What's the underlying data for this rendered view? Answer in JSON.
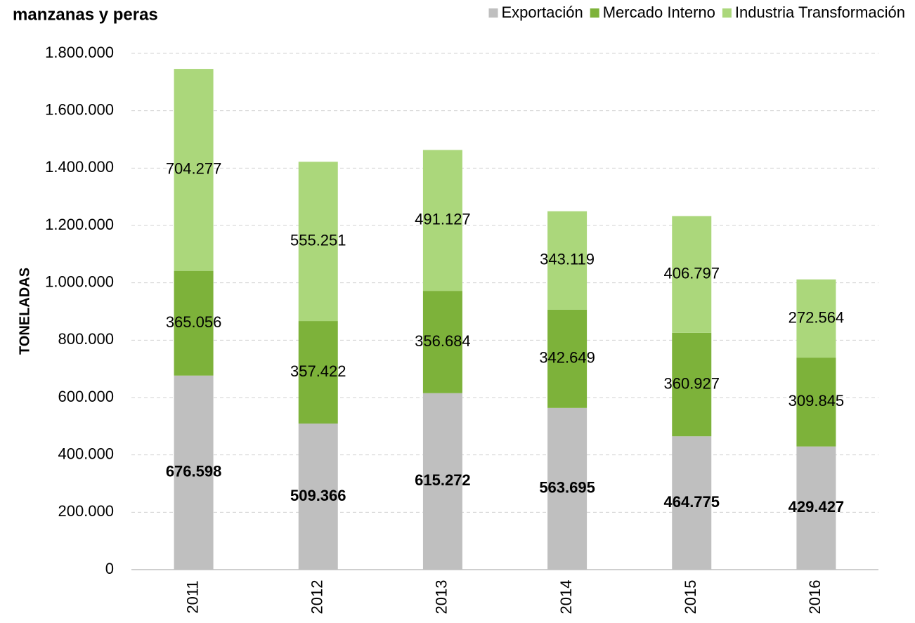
{
  "chart_data": {
    "type": "stacked_bar",
    "title": "manzanas y peras",
    "y_label": "TONELADAS",
    "categories": [
      "2011",
      "2012",
      "2013",
      "2014",
      "2015",
      "2016"
    ],
    "series": [
      {
        "name": "Exportación",
        "color": "#bfbfbf",
        "values": [
          676598,
          509366,
          615272,
          563695,
          464775,
          429427
        ],
        "value_labels": [
          "676.598",
          "509.366",
          "615.272",
          "563.695",
          "464.775",
          "429.427"
        ]
      },
      {
        "name": "Mercado Interno",
        "color": "#7db23a",
        "values": [
          365056,
          357422,
          356684,
          342649,
          360927,
          309845
        ],
        "value_labels": [
          "365.056",
          "357.422",
          "356.684",
          "342.649",
          "360.927",
          "309.845"
        ]
      },
      {
        "name": "Industria Transformación",
        "color": "#abd77b",
        "values": [
          704277,
          555251,
          491127,
          343119,
          406797,
          272564
        ],
        "value_labels": [
          "704.277",
          "555.251",
          "491.127",
          "343.119",
          "406.797",
          "272.564"
        ]
      }
    ],
    "ylim": [
      0,
      1800000
    ],
    "yticks": [
      0,
      {
        "value": 200000,
        "label": "200.000"
      },
      {
        "value": 400000,
        "label": "400.000"
      },
      {
        "value": 600000,
        "label": "600.000"
      },
      {
        "value": 800000,
        "label": "800.000"
      },
      {
        "value": 1000000,
        "label": "1.000.000"
      },
      {
        "value": 1200000,
        "label": "1.200.000"
      },
      {
        "value": 1400000,
        "label": "1.400.000"
      },
      {
        "value": 1600000,
        "label": "1.600.000"
      },
      {
        "value": 1800000,
        "label": "1.800.000"
      }
    ],
    "grid": true,
    "legend": "top-right"
  }
}
